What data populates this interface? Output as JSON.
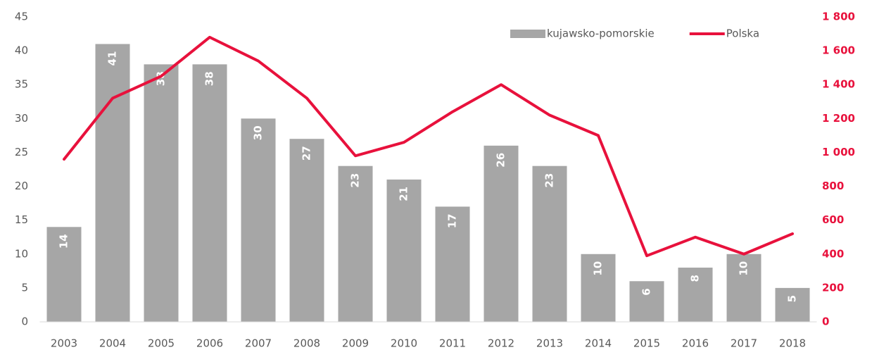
{
  "chart_data": {
    "type": "bar_line",
    "categories": [
      "2003",
      "2004",
      "2005",
      "2006",
      "2007",
      "2008",
      "2009",
      "2010",
      "2011",
      "2012",
      "2013",
      "2014",
      "2015",
      "2016",
      "2017",
      "2018"
    ],
    "series": [
      {
        "name": "kujawsko-pomorskie",
        "type": "bar",
        "color": "#a6a6a6",
        "values": [
          14,
          41,
          38,
          38,
          30,
          27,
          23,
          21,
          17,
          26,
          23,
          10,
          6,
          8,
          10,
          5
        ]
      },
      {
        "name": "Polska",
        "type": "line",
        "axis": "y2",
        "color": "#e8113c",
        "values": [
          960,
          1320,
          1450,
          1680,
          1540,
          1320,
          980,
          1060,
          1240,
          1400,
          1220,
          1100,
          390,
          500,
          400,
          520
        ]
      }
    ],
    "ylim": [
      0,
      45
    ],
    "yticks": [
      0,
      5,
      10,
      15,
      20,
      25,
      30,
      35,
      40,
      45
    ],
    "y2lim": [
      0,
      1800
    ],
    "y2ticks": [
      0,
      200,
      400,
      600,
      800,
      {
        "value": 1000,
        "label": "1 000"
      },
      {
        "value": 1200,
        "label": "1 200"
      },
      {
        "value": 1400,
        "label": "1 400"
      },
      {
        "value": 1600,
        "label": "1 600"
      },
      {
        "value": 1800,
        "label": "1 800"
      }
    ],
    "grid": false,
    "legend": "upper right"
  }
}
